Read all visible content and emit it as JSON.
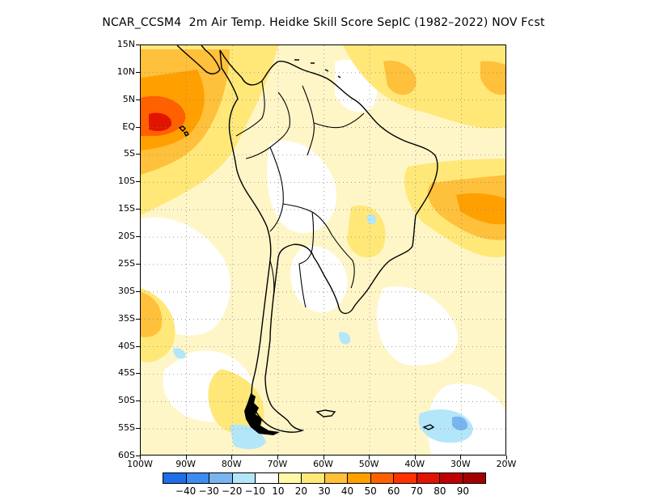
{
  "title": "NCAR_CCSM4  2m Air Temp. Heidke Skill Score SepIC (1982–2022) NOV Fcst",
  "map": {
    "lat_labels": [
      "15N",
      "10N",
      "5N",
      "EQ",
      "5S",
      "10S",
      "15S",
      "20S",
      "25S",
      "30S",
      "35S",
      "40S",
      "45S",
      "50S",
      "55S",
      "60S"
    ],
    "lon_labels": [
      "100W",
      "90W",
      "80W",
      "70W",
      "60W",
      "50W",
      "40W",
      "30W",
      "20W"
    ],
    "extent": {
      "lon_min": -100,
      "lon_max": -20,
      "lat_min": -60,
      "lat_max": 15
    },
    "grid": "dotted"
  },
  "colorbar": {
    "colors": [
      "#1e6ee8",
      "#3c8cf0",
      "#78b4f0",
      "#b4e6fa",
      "#ffffff",
      "#fffaaa",
      "#ffe878",
      "#ffc03c",
      "#ffa000",
      "#ff6000",
      "#ff3200",
      "#e11400",
      "#c00000",
      "#a50000"
    ],
    "labels": [
      "−40",
      "−30",
      "−20",
      "−10",
      "10",
      "20",
      "30",
      "40",
      "50",
      "60",
      "70",
      "80",
      "90"
    ]
  }
}
